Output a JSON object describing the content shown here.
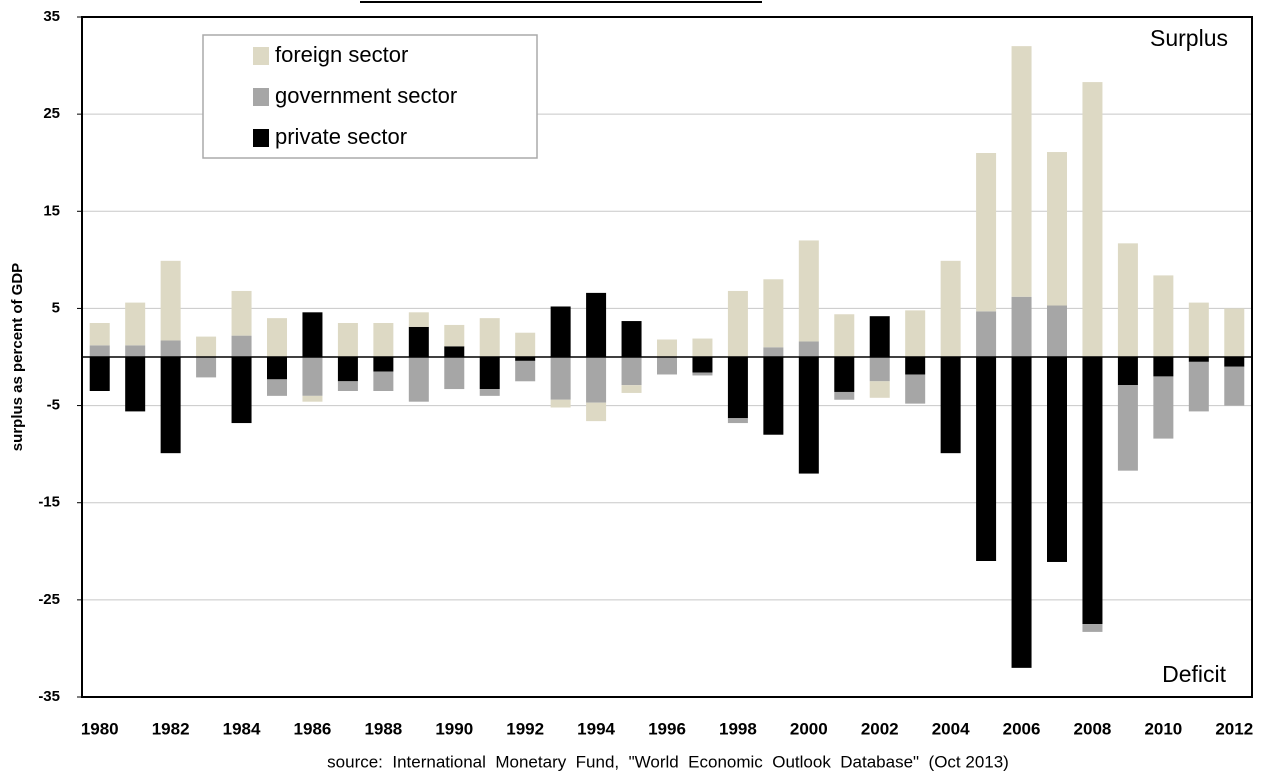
{
  "chart_data": {
    "type": "stacked_bar",
    "y_label": "surplus as percent of GDP",
    "source": "source:  International  Monetary  Fund,  \"World  Economic  Outlook  Database\"  (Oct 2013)",
    "annotations": [
      "Surplus",
      "Deficit"
    ],
    "categories": [
      "1980",
      null,
      "1982",
      null,
      "1984",
      null,
      "1986",
      null,
      "1988",
      null,
      "1990",
      null,
      "1992",
      null,
      "1994",
      null,
      "1996",
      null,
      "1998",
      null,
      "2000",
      null,
      "2002",
      null,
      "2004",
      null,
      "2006",
      null,
      "2008",
      null,
      "2010",
      null,
      "2012"
    ],
    "series": [
      {
        "name": "private sector",
        "color": "#000000",
        "values": [
          -3.5,
          -5.6,
          -9.9,
          0,
          -6.8,
          -2.3,
          4.6,
          -2.5,
          -1.5,
          3.1,
          1.1,
          -3.3,
          -0.4,
          5.2,
          6.6,
          3.7,
          0,
          -1.6,
          -6.3,
          -8.0,
          -12.0,
          -3.6,
          4.2,
          -1.8,
          -9.9,
          -21.0,
          -32.0,
          -21.1,
          -27.5,
          -2.9,
          -2.0,
          -0.5,
          -1.0
        ]
      },
      {
        "name": "government sector",
        "color": "#a6a6a6",
        "values": [
          1.2,
          1.2,
          1.7,
          -2.1,
          2.2,
          -1.7,
          -4.0,
          -1.0,
          -2.0,
          -4.6,
          -3.3,
          -0.7,
          -2.1,
          -4.4,
          -4.7,
          -2.9,
          -1.8,
          -0.3,
          -0.5,
          1.0,
          1.6,
          -0.8,
          -2.5,
          -3.0,
          0,
          4.7,
          6.2,
          5.3,
          -0.8,
          -8.8,
          -6.4,
          -5.1,
          -4.0
        ]
      },
      {
        "name": "foreign sector",
        "color": "#ddd9c4",
        "values": [
          2.3,
          4.4,
          8.2,
          2.1,
          4.6,
          4.0,
          -0.6,
          3.5,
          3.5,
          1.5,
          2.2,
          4.0,
          2.5,
          -0.8,
          -1.9,
          -0.8,
          1.8,
          1.9,
          6.8,
          7.0,
          10.4,
          4.4,
          -1.7,
          4.8,
          9.9,
          16.3,
          25.8,
          15.8,
          28.3,
          11.7,
          8.4,
          5.6,
          5.0
        ]
      }
    ],
    "ylim": [
      -35,
      35
    ],
    "yticks": [
      -35,
      -25,
      -15,
      -5,
      5,
      15,
      25,
      35
    ],
    "grid": true,
    "legend": "upper left"
  }
}
